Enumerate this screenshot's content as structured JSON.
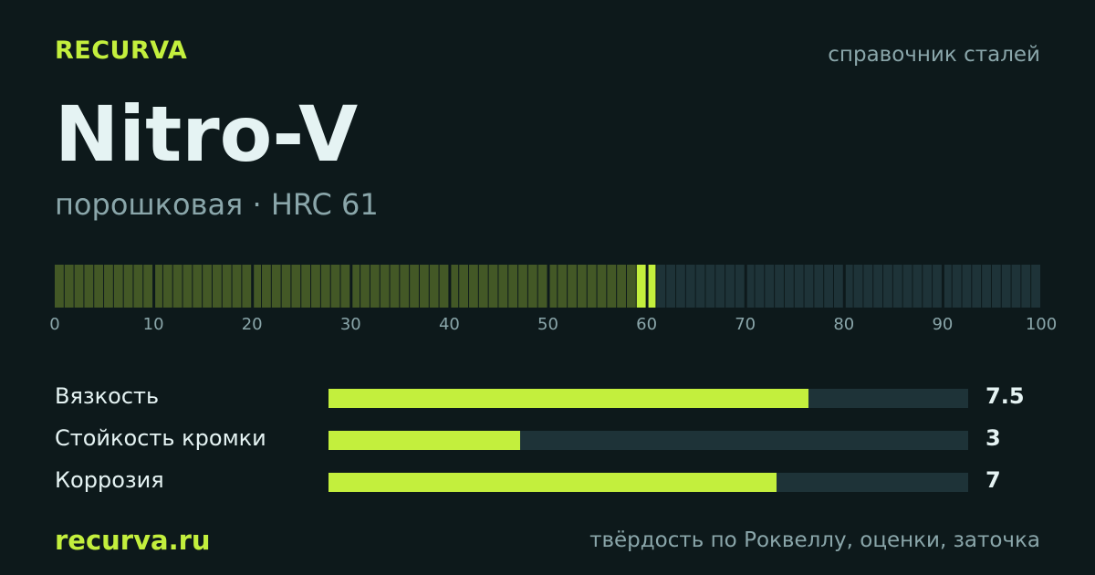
{
  "header": {
    "brand": "RECURVA",
    "tagline": "справочник сталей"
  },
  "steel": {
    "name": "Nitro-V",
    "subtitle": "порошковая · HRC 61"
  },
  "hardness_scale": {
    "value": 61,
    "min": 0,
    "max": 100,
    "tick_labels": [
      "0",
      "10",
      "20",
      "30",
      "40",
      "50",
      "60",
      "70",
      "80",
      "90",
      "100"
    ],
    "colors": {
      "filled": "#435826",
      "marker": "#c3ef3d",
      "empty": "#1e3338"
    }
  },
  "ratings": [
    {
      "label": "Вязкость",
      "value": 7.5,
      "value_text": "7.5",
      "max": 10
    },
    {
      "label": "Стойкость кромки",
      "value": 3,
      "value_text": "3",
      "max": 10
    },
    {
      "label": "Коррозия",
      "value": 7,
      "value_text": "7",
      "max": 10
    }
  ],
  "footer": {
    "site": "recurva.ru",
    "note": "твёрдость по Роквеллу, оценки, заточка"
  },
  "colors": {
    "background": "#0d191b",
    "accent": "#c3ef3d",
    "text": "#e5f3f3",
    "muted": "#8aa6aa",
    "track": "#1e3338"
  }
}
